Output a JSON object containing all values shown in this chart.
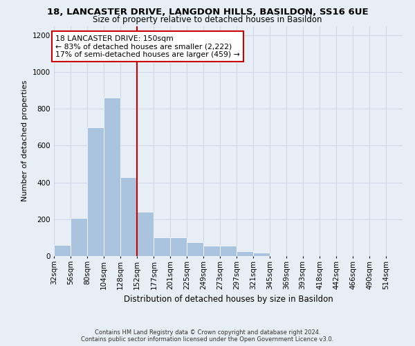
{
  "title1": "18, LANCASTER DRIVE, LANGDON HILLS, BASILDON, SS16 6UE",
  "title2": "Size of property relative to detached houses in Basildon",
  "xlabel": "Distribution of detached houses by size in Basildon",
  "ylabel": "Number of detached properties",
  "footnote": "Contains HM Land Registry data © Crown copyright and database right 2024.\nContains public sector information licensed under the Open Government Licence v3.0.",
  "bin_labels": [
    "32sqm",
    "56sqm",
    "80sqm",
    "104sqm",
    "128sqm",
    "152sqm",
    "177sqm",
    "201sqm",
    "225sqm",
    "249sqm",
    "273sqm",
    "297sqm",
    "321sqm",
    "345sqm",
    "369sqm",
    "393sqm",
    "418sqm",
    "442sqm",
    "466sqm",
    "490sqm",
    "514sqm"
  ],
  "bar_left_edges": [
    32,
    56,
    80,
    104,
    128,
    152,
    177,
    201,
    225,
    249,
    273,
    297,
    321,
    345,
    369,
    393,
    418,
    442,
    466,
    490
  ],
  "bar_widths": [
    24,
    24,
    24,
    24,
    24,
    25,
    24,
    24,
    24,
    24,
    24,
    24,
    24,
    24,
    24,
    25,
    24,
    24,
    24,
    24
  ],
  "bar_values": [
    60,
    207,
    700,
    860,
    430,
    240,
    103,
    103,
    75,
    55,
    55,
    28,
    20,
    0,
    0,
    0,
    0,
    0,
    0,
    0
  ],
  "subject_line_x": 152,
  "subject_line_color": "#cc0000",
  "bar_color": "#aac4e0",
  "bar_edge_color": "#ffffff",
  "grid_color": "#d0d8e8",
  "background_color": "#e8eef5",
  "annotation_text": "18 LANCASTER DRIVE: 150sqm\n← 83% of detached houses are smaller (2,222)\n17% of semi-detached houses are larger (459) →",
  "annotation_box_color": "#ffffff",
  "annotation_box_edge": "#cc0000",
  "xlim": [
    32,
    538
  ],
  "ylim": [
    0,
    1250
  ],
  "yticks": [
    0,
    200,
    400,
    600,
    800,
    1000,
    1200
  ],
  "title1_fontsize": 9.5,
  "title2_fontsize": 8.5,
  "ylabel_fontsize": 8,
  "xlabel_fontsize": 8.5,
  "tick_fontsize": 7.5,
  "footnote_fontsize": 6.0
}
